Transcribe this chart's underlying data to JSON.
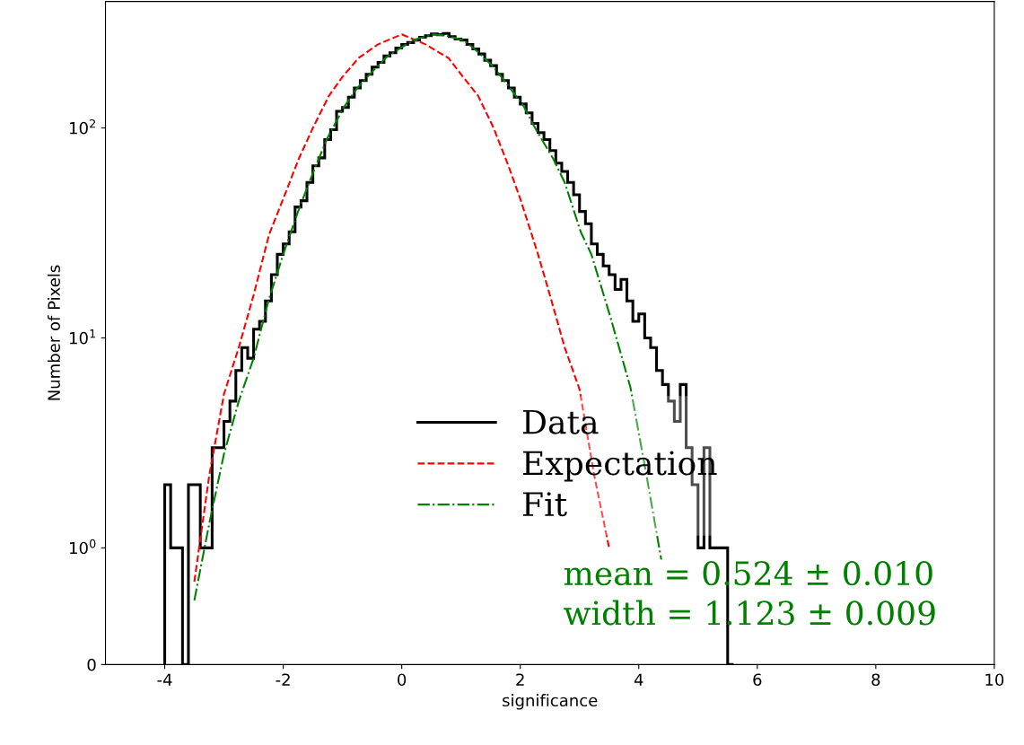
{
  "chart_data": {
    "type": "histogram",
    "xlabel": "significance",
    "ylabel": "Number of Pixels",
    "bins": [
      -4.0,
      -3.9,
      -3.8,
      -3.7,
      -3.6,
      -3.5,
      -3.4,
      -3.3,
      -3.2,
      -3.1,
      -3.0,
      -2.9,
      -2.8,
      -2.7,
      -2.6,
      -2.5,
      -2.4,
      -2.3,
      -2.2,
      -2.1,
      -2.0,
      -1.9,
      -1.8,
      -1.7,
      -1.6,
      -1.5,
      -1.4,
      -1.3,
      -1.2,
      -1.1,
      -1.0,
      -0.9,
      -0.8,
      -0.7,
      -0.6,
      -0.5,
      -0.4,
      -0.3,
      -0.2,
      -0.1,
      0.0,
      0.1,
      0.2,
      0.3,
      0.4,
      0.5,
      0.6,
      0.7,
      0.8,
      0.9,
      1.0,
      1.1,
      1.2,
      1.3,
      1.4,
      1.5,
      1.6,
      1.7,
      1.8,
      1.9,
      2.0,
      2.1,
      2.2,
      2.3,
      2.4,
      2.5,
      2.6,
      2.7,
      2.8,
      2.9,
      3.0,
      3.1,
      3.2,
      3.3,
      3.4,
      3.5,
      3.6,
      3.7,
      3.8,
      3.9,
      4.0,
      4.1,
      4.2,
      4.3,
      4.4,
      4.5,
      4.6,
      4.7,
      4.8,
      4.9,
      5.0,
      5.1,
      5.2,
      5.3,
      5.4,
      5.5,
      5.6
    ],
    "series": [
      {
        "name": "Data",
        "color": "#000000",
        "values": [
          2,
          1,
          1,
          0,
          2,
          2,
          1,
          1,
          3,
          3,
          4,
          5,
          7,
          9,
          8,
          11,
          12,
          15,
          20,
          25,
          28,
          32,
          42,
          45,
          55,
          66,
          72,
          88,
          98,
          120,
          125,
          140,
          155,
          168,
          180,
          195,
          205,
          220,
          228,
          240,
          250,
          255,
          262,
          270,
          275,
          280,
          278,
          282,
          272,
          265,
          262,
          250,
          238,
          225,
          210,
          198,
          180,
          168,
          155,
          140,
          130,
          118,
          105,
          95,
          88,
          78,
          68,
          62,
          55,
          48,
          40,
          35,
          28,
          25,
          22,
          20,
          17,
          19,
          15,
          12,
          13,
          10,
          9,
          7,
          6,
          5,
          4,
          6,
          3,
          2,
          1,
          3,
          1,
          1,
          1,
          0
        ]
      },
      {
        "name": "Expectation",
        "type": "line",
        "line_style": "dashed",
        "color": "#ff0000",
        "x": [
          -3.5,
          -3.25,
          -3,
          -2.75,
          -2.5,
          -2.24,
          -2,
          -1.74,
          -1.5,
          -1.23,
          -1,
          -0.73,
          -0.4,
          0,
          0.4,
          0.79,
          1,
          1.29,
          1.55,
          1.8,
          2,
          2.3,
          2.5,
          2.75,
          3,
          3.25,
          3.5
        ],
        "values": [
          0.71,
          2.2,
          5.4,
          9,
          16,
          31,
          46,
          71,
          100,
          142,
          175,
          215,
          250,
          279,
          250,
          215,
          180,
          142,
          100,
          66,
          46,
          25,
          16,
          9,
          5.7,
          2.2,
          1
        ]
      },
      {
        "name": "Fit",
        "type": "line",
        "line_style": "dashdot",
        "color": "#008000",
        "x": [
          -3.5,
          -3.25,
          -3,
          -2.75,
          -2.5,
          -2.25,
          -2,
          -1.75,
          -1.48,
          -1.25,
          -0.98,
          -0.75,
          -0.47,
          -0.25,
          0.03,
          0.25,
          0.53,
          0.75,
          1.05,
          1.25,
          1.55,
          1.75,
          2.05,
          2.25,
          2.56,
          2.75,
          3.02,
          3.2,
          3.52,
          3.86,
          4.12,
          4.38
        ],
        "values": [
          0.55,
          1.3,
          2.8,
          5,
          8,
          15,
          25,
          40,
          63,
          90,
          125,
          155,
          189,
          218,
          245,
          265,
          279,
          275,
          261,
          235,
          195,
          165,
          128,
          100,
          71,
          55,
          32,
          25,
          12.6,
          5.8,
          2.3,
          0.9
        ]
      }
    ],
    "xlim": [
      -5,
      10
    ],
    "xticks": [
      -4,
      -2,
      0,
      2,
      4,
      6,
      8,
      10
    ],
    "ylim": [
      0,
      400
    ],
    "yticks": [
      0,
      {
        "value": 1,
        "label": "10$^{0}$"
      },
      {
        "value": 10,
        "label": "10$^{1}$"
      },
      {
        "value": 100,
        "label": "10$^{2}$"
      }
    ],
    "log": "y",
    "grid": false,
    "legend": "bottom",
    "annotations": [
      "mean = 0.524 ± 0.010",
      "width = 1.123 ± 0.009"
    ]
  }
}
